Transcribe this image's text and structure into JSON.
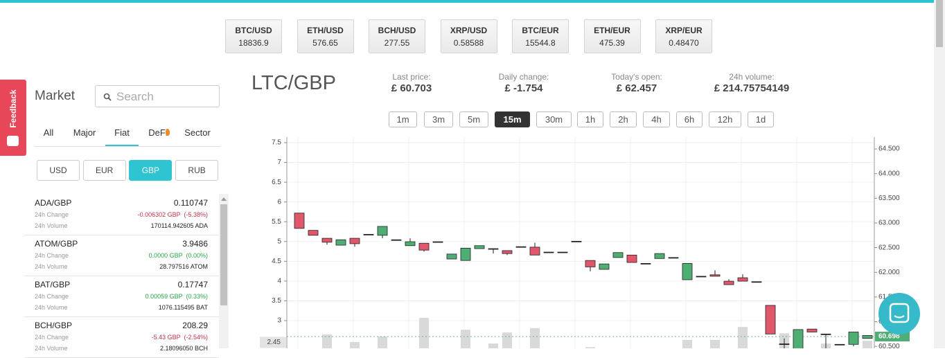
{
  "tickers": [
    {
      "pair": "BTC/USD",
      "price": "18836.9"
    },
    {
      "pair": "ETH/USD",
      "price": "576.65"
    },
    {
      "pair": "BCH/USD",
      "price": "277.55"
    },
    {
      "pair": "XRP/USD",
      "price": "0.58588"
    },
    {
      "pair": "BTC/EUR",
      "price": "15544.8"
    },
    {
      "pair": "ETH/EUR",
      "price": "475.39"
    },
    {
      "pair": "XRP/EUR",
      "price": "0.48470"
    }
  ],
  "feedback": "Feedback",
  "market": {
    "title": "Market",
    "search_placeholder": "Search",
    "tabs": [
      "All",
      "Major",
      "Fiat",
      "DeFi",
      "Sector"
    ],
    "active_tab": 2,
    "currencies": [
      "USD",
      "EUR",
      "GBP",
      "RUB"
    ],
    "active_currency": 2,
    "items": [
      {
        "pair": "ADA/GBP",
        "price": "0.110747",
        "change_label": "24h Change",
        "change": "-0.006302 GBP  (-5.38%)",
        "positive": false,
        "volume_label": "24h Volume",
        "volume": "170114.942605 ADA"
      },
      {
        "pair": "ATOM/GBP",
        "price": "3.9486",
        "change_label": "24h Change",
        "change": "0.0000 GBP  (0.00%)",
        "positive": true,
        "volume_label": "24h Volume",
        "volume": "28.797516 ATOM"
      },
      {
        "pair": "BAT/GBP",
        "price": "0.17747",
        "change_label": "24h Change",
        "change": "0.00059 GBP  (0.33%)",
        "positive": true,
        "volume_label": "24h Volume",
        "volume": "1076.115495 BAT"
      },
      {
        "pair": "BCH/GBP",
        "price": "208.29",
        "change_label": "24h Change",
        "change": "-5.43 GBP  (-2.54%)",
        "positive": false,
        "volume_label": "24h Volume",
        "volume": "2.18096050 BCH"
      }
    ]
  },
  "header": {
    "pair": "LTC/GBP",
    "stats": [
      {
        "label": "Last price:",
        "value": "£ 60.703"
      },
      {
        "label": "Daily change:",
        "value": "£ -1.754"
      },
      {
        "label": "Today's open:",
        "value": "£ 62.457"
      },
      {
        "label": "24h volume:",
        "value": "£ 214.75754149"
      }
    ]
  },
  "intervals": [
    "1m",
    "3m",
    "5m",
    "15m",
    "30m",
    "1h",
    "2h",
    "4h",
    "6h",
    "12h",
    "1d"
  ],
  "active_interval": 3,
  "chart_data": {
    "type": "candlestick",
    "up_color": "#4fae74",
    "down_color": "#e0566a",
    "volume_color": "#d9d9d9",
    "grid": true,
    "ylim": [
      2.3,
      7.64
    ],
    "yticks": [
      3,
      3.5,
      4,
      4.5,
      5,
      5.5,
      6,
      6.5,
      7,
      7.5
    ],
    "y2lim": [
      60.46,
      64.74
    ],
    "y2ticks": [
      {
        "value": 60.5,
        "label": "60.500"
      },
      {
        "value": 61,
        "label": "61.000"
      },
      {
        "value": 61.5,
        "label": "61.500"
      },
      {
        "value": 62,
        "label": "62.000"
      },
      {
        "value": 62.5,
        "label": "62.500"
      },
      {
        "value": 63,
        "label": "63.000"
      },
      {
        "value": 63.5,
        "label": "63.500"
      },
      {
        "value": 64,
        "label": "64.000"
      },
      {
        "value": 64.5,
        "label": "64.500"
      }
    ],
    "open": [
      63.2,
      62.85,
      62.69,
      62.55,
      62.69,
      62.77,
      62.75,
      62.66,
      62.54,
      62.59,
      62.62,
      62.27,
      62.24,
      62.48,
      62.48,
      62.44,
      62.52,
      62.51,
      62.41,
      62.41,
      62.63,
      62.24,
      62.06,
      62.3,
      62.35,
      62.18,
      62.28,
      62.3,
      61.85,
      61.92,
      61.95,
      61.82,
      61.89,
      61.81,
      61.33,
      60.55,
      60.45,
      60.85,
      60.75,
      60.54,
      60.54,
      60.66
    ],
    "high": [
      63.2,
      62.85,
      62.69,
      62.66,
      62.69,
      62.77,
      62.93,
      62.66,
      62.69,
      62.59,
      62.62,
      62.37,
      62.49,
      62.54,
      62.48,
      62.44,
      62.52,
      62.6,
      62.41,
      62.41,
      62.63,
      62.24,
      62.17,
      62.4,
      62.35,
      62.18,
      62.38,
      62.3,
      62.18,
      61.92,
      62.04,
      61.86,
      61.96,
      61.81,
      61.33,
      60.66,
      60.84,
      60.85,
      60.75,
      60.54,
      60.79,
      60.72
    ],
    "low": [
      62.89,
      62.75,
      62.56,
      62.55,
      62.52,
      62.77,
      62.69,
      62.66,
      62.54,
      62.42,
      62.62,
      62.27,
      62.24,
      62.48,
      62.38,
      62.35,
      62.52,
      62.35,
      62.41,
      62.41,
      62.63,
      62.02,
      62.06,
      62.3,
      62.2,
      62.18,
      62.28,
      62.3,
      61.85,
      61.92,
      61.92,
      61.75,
      61.82,
      61.81,
      60.75,
      60.4,
      60.4,
      60.79,
      60.3,
      60.54,
      60.5,
      60.66
    ],
    "close": [
      62.89,
      62.75,
      62.61,
      62.66,
      62.58,
      62.77,
      62.93,
      62.66,
      62.62,
      62.45,
      62.62,
      62.37,
      62.49,
      62.54,
      62.48,
      62.38,
      62.52,
      62.35,
      62.41,
      62.41,
      62.63,
      62.11,
      62.17,
      62.4,
      62.2,
      62.18,
      62.38,
      62.3,
      62.18,
      61.92,
      61.92,
      61.75,
      61.82,
      61.81,
      60.75,
      60.55,
      60.84,
      60.79,
      60.75,
      60.54,
      60.79,
      60.72
    ],
    "volume": [
      2.3,
      2.3,
      2.65,
      2.3,
      2.46,
      2.3,
      2.6,
      2.3,
      2.3,
      3.07,
      2.3,
      2.3,
      2.77,
      2.3,
      2.42,
      2.7,
      2.3,
      2.81,
      2.3,
      2.3,
      2.3,
      2.33,
      2.3,
      2.3,
      2.3,
      2.3,
      2.3,
      2.3,
      2.51,
      2.3,
      2.51,
      2.3,
      2.84,
      2.3,
      2.3,
      2.68,
      2.3,
      2.3,
      2.42,
      2.3,
      2.3,
      2.49
    ],
    "last_price": 60.698,
    "last_volume": 2.45
  }
}
